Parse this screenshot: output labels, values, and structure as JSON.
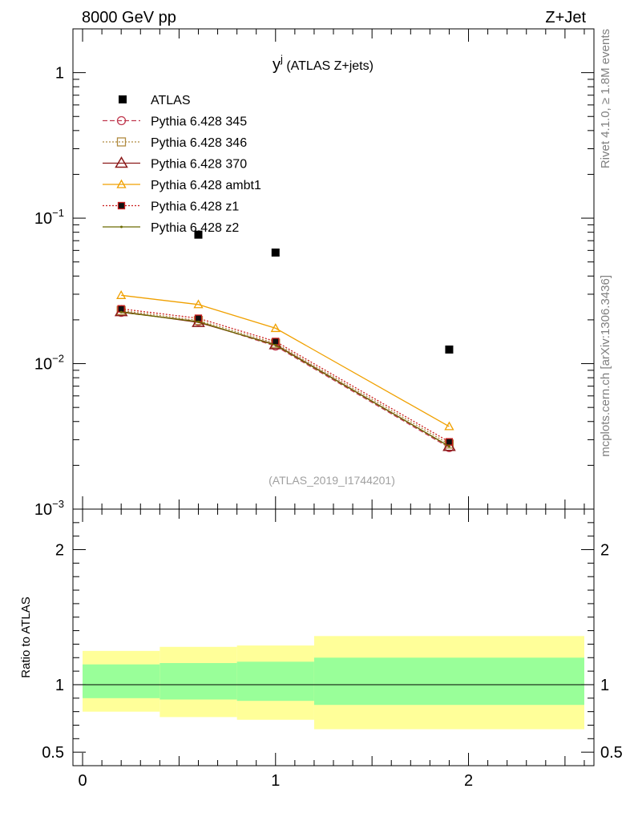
{
  "header": {
    "left": "8000 GeV pp",
    "right": "Z+Jet"
  },
  "side_labels": {
    "rivet": "Rivet 4.1.0, ≥ 1.8M events",
    "mcplots": "mcplots.cern.ch [arXiv:1306.3436]"
  },
  "chart_data": {
    "type": "line",
    "title_main": "y",
    "title_sup": "j",
    "title_rest": " (ATLAS Z+jets)",
    "watermark": "(ATLAS_2019_I1744201)",
    "xlim": [
      -0.05,
      2.65
    ],
    "ylim_main": [
      0.001,
      2
    ],
    "yscale_main": "log",
    "ylim_ratio": [
      0.4,
      2.3
    ],
    "ratio_ylabel": "Ratio to ATLAS",
    "main_tick_labels": [
      {
        "v": 1,
        "base": "1",
        "exp": ""
      },
      {
        "v": 0.1,
        "base": "10",
        "exp": "−1"
      },
      {
        "v": 0.01,
        "base": "10",
        "exp": "−2"
      },
      {
        "v": 0.001,
        "base": "10",
        "exp": "−3"
      }
    ],
    "ratio_tick_labels": [
      {
        "v": 2,
        "label": "2"
      },
      {
        "v": 1,
        "label": "1"
      },
      {
        "v": 0.5,
        "label": "0.5"
      }
    ],
    "x_tick_labels": [
      {
        "v": 0,
        "label": "0"
      },
      {
        "v": 1,
        "label": "1"
      },
      {
        "v": 2,
        "label": "2"
      }
    ],
    "data": {
      "name": "ATLAS",
      "x": [
        0.6,
        1.0,
        1.9
      ],
      "y": [
        0.077,
        0.058,
        0.0125
      ]
    },
    "bands": [
      {
        "x0": 0.0,
        "x1": 0.4,
        "y1_lo": 0.9,
        "y1_hi": 1.15,
        "y2_lo": 0.8,
        "y2_hi": 1.25
      },
      {
        "x0": 0.4,
        "x1": 0.8,
        "y1_lo": 0.89,
        "y1_hi": 1.16,
        "y2_lo": 0.76,
        "y2_hi": 1.28
      },
      {
        "x0": 0.8,
        "x1": 1.2,
        "y1_lo": 0.88,
        "y1_hi": 1.17,
        "y2_lo": 0.74,
        "y2_hi": 1.29
      },
      {
        "x0": 1.2,
        "x1": 2.6,
        "y1_lo": 0.85,
        "y1_hi": 1.2,
        "y2_lo": 0.67,
        "y2_hi": 1.36
      }
    ],
    "series": [
      {
        "name": "Pythia 6.428 345",
        "color": "#c0394f",
        "dash": "6,3",
        "marker": "circle",
        "x": [
          0.2,
          0.6,
          1.0,
          1.9
        ],
        "y": [
          0.0225,
          0.0195,
          0.0132,
          0.00265
        ]
      },
      {
        "name": "Pythia 6.428 346",
        "color": "#b08a40",
        "dash": "2,2",
        "marker": "square",
        "x": [
          0.2,
          0.6,
          1.0,
          1.9
        ],
        "y": [
          0.0232,
          0.0198,
          0.0138,
          0.0028
        ]
      },
      {
        "name": "Pythia 6.428 370",
        "color": "#8b1a1a",
        "dash": "",
        "marker": "triangle",
        "x": [
          0.2,
          0.6,
          1.0,
          1.9
        ],
        "y": [
          0.0228,
          0.0192,
          0.0135,
          0.0027
        ]
      },
      {
        "name": "Pythia 6.428 ambt1",
        "color": "#f0a000",
        "dash": "",
        "marker": "triangle-small",
        "x": [
          0.2,
          0.6,
          1.0,
          1.9
        ],
        "y": [
          0.0295,
          0.0255,
          0.0175,
          0.0037
        ]
      },
      {
        "name": "Pythia 6.428 z1",
        "color": "#cc1f1f",
        "dash": "2,2",
        "marker": "square-dark",
        "x": [
          0.2,
          0.6,
          1.0,
          1.9
        ],
        "y": [
          0.0238,
          0.0205,
          0.0142,
          0.0029
        ]
      },
      {
        "name": "Pythia 6.428 z2",
        "color": "#6b6b00",
        "dash": "",
        "marker": "dot",
        "x": [
          0.2,
          0.6,
          1.0,
          1.9
        ],
        "y": [
          0.0226,
          0.0194,
          0.0134,
          0.0027
        ]
      }
    ]
  }
}
